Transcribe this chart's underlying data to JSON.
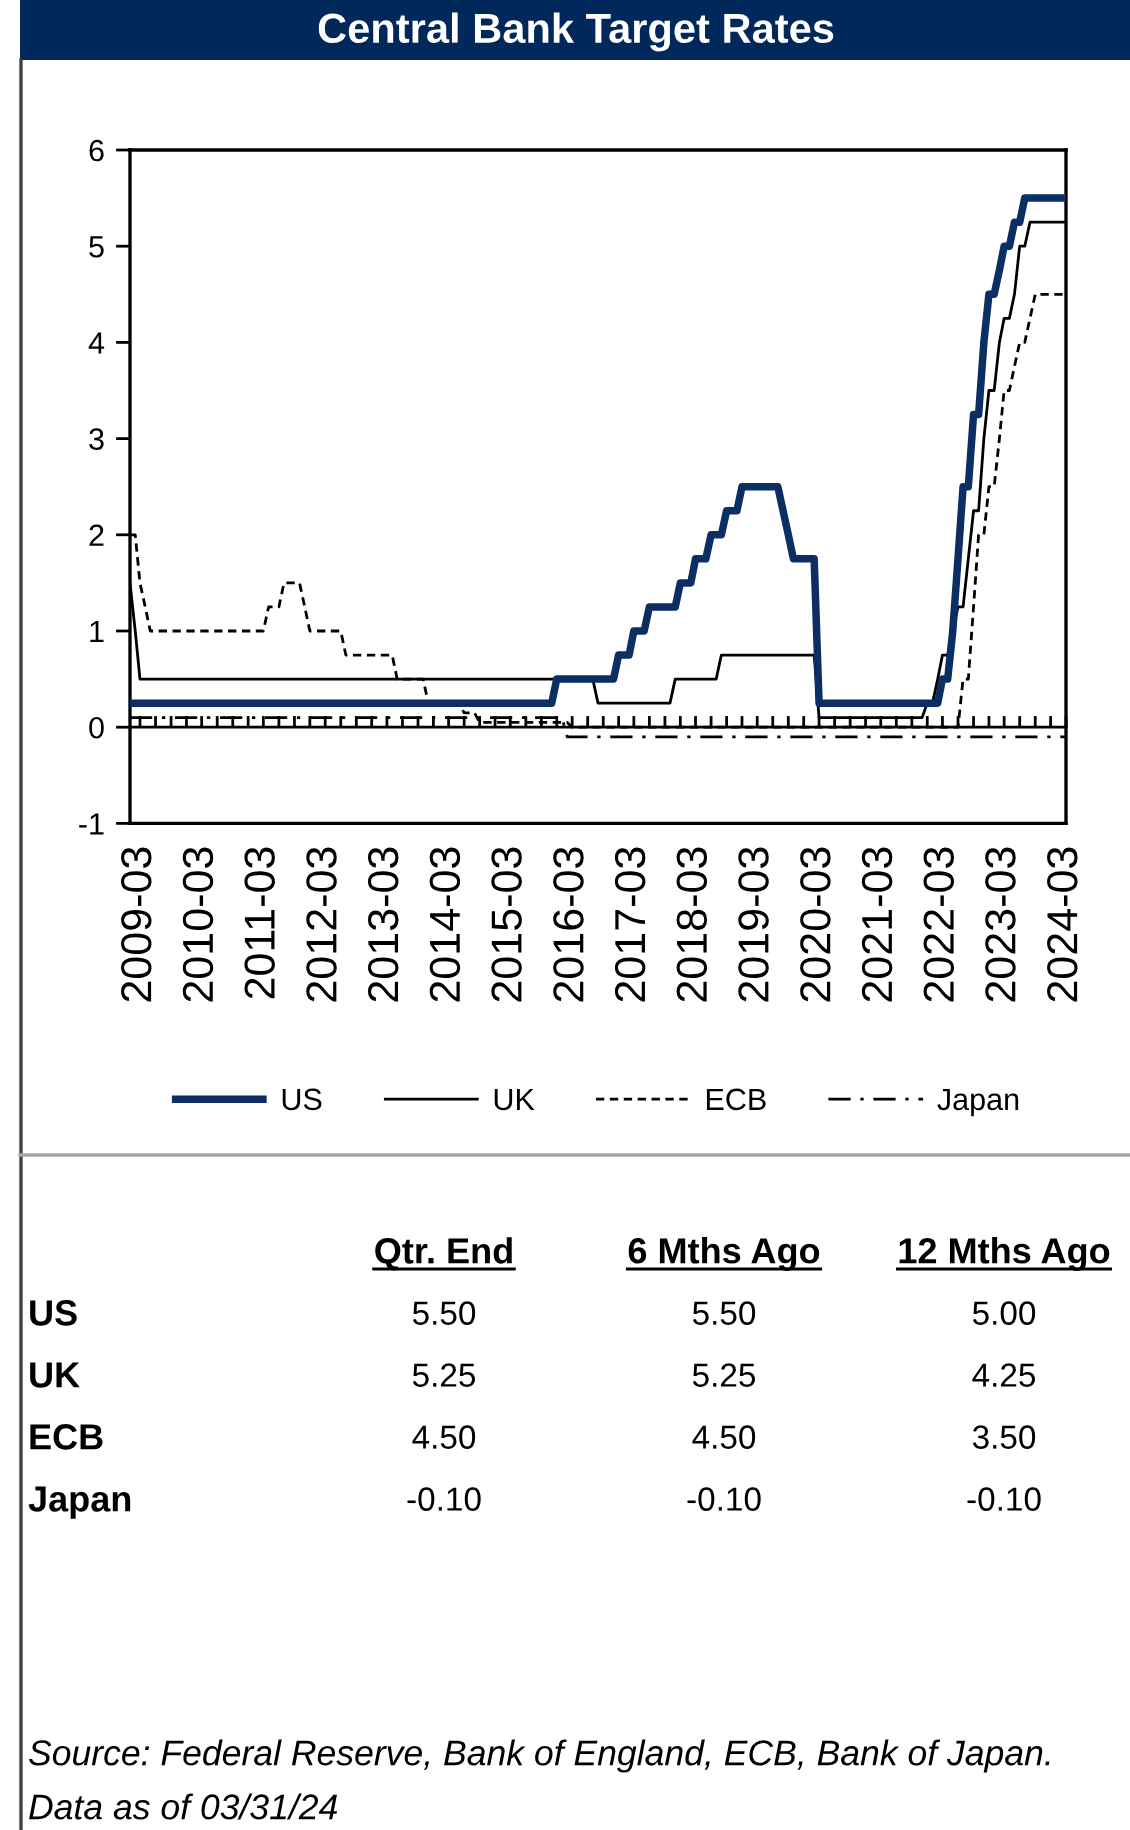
{
  "chart_data": [
    {
      "type": "line",
      "title": "Central Bank Target Rates",
      "xlim": [
        "2009-01",
        "2024-03"
      ],
      "ylim": [
        -1,
        6
      ],
      "yticks": [
        -1,
        0,
        1,
        2,
        3,
        4,
        5,
        6
      ],
      "xticks": [
        "2009-03",
        {
          "value": "2009-06",
          "label": null
        },
        {
          "value": "2009-09",
          "label": null
        },
        {
          "value": "2009-12",
          "label": null
        },
        "2010-03",
        {
          "value": "2010-06",
          "label": null
        },
        {
          "value": "2010-09",
          "label": null
        },
        {
          "value": "2010-12",
          "label": null
        },
        "2011-03",
        {
          "value": "2011-06",
          "label": null
        },
        {
          "value": "2011-09",
          "label": null
        },
        {
          "value": "2011-12",
          "label": null
        },
        "2012-03",
        {
          "value": "2012-06",
          "label": null
        },
        {
          "value": "2012-09",
          "label": null
        },
        {
          "value": "2012-12",
          "label": null
        },
        "2013-03",
        {
          "value": "2013-06",
          "label": null
        },
        {
          "value": "2013-09",
          "label": null
        },
        {
          "value": "2013-12",
          "label": null
        },
        "2014-03",
        {
          "value": "2014-06",
          "label": null
        },
        {
          "value": "2014-09",
          "label": null
        },
        {
          "value": "2014-12",
          "label": null
        },
        "2015-03",
        {
          "value": "2015-06",
          "label": null
        },
        {
          "value": "2015-09",
          "label": null
        },
        {
          "value": "2015-12",
          "label": null
        },
        "2016-03",
        {
          "value": "2016-06",
          "label": null
        },
        {
          "value": "2016-09",
          "label": null
        },
        {
          "value": "2016-12",
          "label": null
        },
        "2017-03",
        {
          "value": "2017-06",
          "label": null
        },
        {
          "value": "2017-09",
          "label": null
        },
        {
          "value": "2017-12",
          "label": null
        },
        "2018-03",
        {
          "value": "2018-06",
          "label": null
        },
        {
          "value": "2018-09",
          "label": null
        },
        {
          "value": "2018-12",
          "label": null
        },
        "2019-03",
        {
          "value": "2019-06",
          "label": null
        },
        {
          "value": "2019-09",
          "label": null
        },
        {
          "value": "2019-12",
          "label": null
        },
        "2020-03",
        {
          "value": "2020-06",
          "label": null
        },
        {
          "value": "2020-09",
          "label": null
        },
        {
          "value": "2020-12",
          "label": null
        },
        "2021-03",
        {
          "value": "2021-06",
          "label": null
        },
        {
          "value": "2021-09",
          "label": null
        },
        {
          "value": "2021-12",
          "label": null
        },
        "2022-03",
        {
          "value": "2022-06",
          "label": null
        },
        {
          "value": "2022-09",
          "label": null
        },
        {
          "value": "2022-12",
          "label": null
        },
        "2023-03",
        {
          "value": "2023-06",
          "label": null
        },
        {
          "value": "2023-09",
          "label": null
        },
        {
          "value": "2023-12",
          "label": null
        },
        "2024-03"
      ],
      "ref_lines": [
        {
          "axis": "y",
          "value": 0
        }
      ],
      "legend": "bottom",
      "series": [
        {
          "name": "US",
          "color": "#0b2f62",
          "line_style": "solid",
          "x": [
            "2009-01",
            "2015-11",
            "2015-12",
            "2016-11",
            "2016-12",
            "2017-02",
            "2017-03",
            "2017-05",
            "2017-06",
            "2017-11",
            "2017-12",
            "2018-02",
            "2018-03",
            "2018-05",
            "2018-06",
            "2018-08",
            "2018-09",
            "2018-11",
            "2018-12",
            "2019-07",
            "2019-08",
            "2019-09",
            "2019-10",
            "2020-02",
            "2020-03",
            "2022-02",
            "2022-03",
            "2022-04",
            "2022-05",
            "2022-06",
            "2022-07",
            "2022-08",
            "2022-09",
            "2022-10",
            "2022-11",
            "2022-12",
            "2023-01",
            "2023-02",
            "2023-03",
            "2023-04",
            "2023-05",
            "2023-06",
            "2023-07",
            "2024-03"
          ],
          "values": [
            0.25,
            0.25,
            0.5,
            0.5,
            0.75,
            0.75,
            1.0,
            1.0,
            1.25,
            1.25,
            1.5,
            1.5,
            1.75,
            1.75,
            2.0,
            2.0,
            2.25,
            2.25,
            2.5,
            2.5,
            2.25,
            2.0,
            1.75,
            1.75,
            0.25,
            0.25,
            0.5,
            0.5,
            1.0,
            1.75,
            2.5,
            2.5,
            3.25,
            3.25,
            4.0,
            4.5,
            4.5,
            4.75,
            5.0,
            5.0,
            5.25,
            5.25,
            5.5,
            5.5
          ]
        },
        {
          "name": "UK",
          "color": "#000000",
          "line_style": "solid",
          "x": [
            "2009-01",
            "2009-02",
            "2009-03",
            "2016-07",
            "2016-08",
            "2017-10",
            "2017-11",
            "2018-07",
            "2018-08",
            "2020-02",
            "2020-03",
            "2021-11",
            "2021-12",
            "2022-01",
            "2022-02",
            "2022-03",
            "2022-04",
            "2022-05",
            "2022-06",
            "2022-07",
            "2022-08",
            "2022-09",
            "2022-10",
            "2022-11",
            "2022-12",
            "2023-01",
            "2023-02",
            "2023-03",
            "2023-04",
            "2023-05",
            "2023-06",
            "2023-07",
            "2023-08",
            "2024-03"
          ],
          "values": [
            1.5,
            1.0,
            0.5,
            0.5,
            0.25,
            0.25,
            0.5,
            0.5,
            0.75,
            0.75,
            0.1,
            0.1,
            0.25,
            0.25,
            0.5,
            0.75,
            0.75,
            1.0,
            1.25,
            1.25,
            1.75,
            2.25,
            2.25,
            3.0,
            3.5,
            3.5,
            4.0,
            4.25,
            4.25,
            4.5,
            5.0,
            5.0,
            5.25,
            5.25
          ]
        },
        {
          "name": "ECB",
          "color": "#000000",
          "line_style": "dashed",
          "x": [
            "2009-01",
            "2009-02",
            "2009-03",
            "2009-04",
            "2009-05",
            "2011-03",
            "2011-04",
            "2011-06",
            "2011-07",
            "2011-10",
            "2011-11",
            "2011-12",
            "2012-06",
            "2012-07",
            "2013-04",
            "2013-05",
            "2013-10",
            "2013-11",
            "2014-05",
            "2014-06",
            "2014-08",
            "2014-09",
            "2016-02",
            "2016-03",
            "2022-06",
            "2022-07",
            "2022-08",
            "2022-09",
            "2022-10",
            "2022-11",
            "2022-12",
            "2023-01",
            "2023-02",
            "2023-03",
            "2023-04",
            "2023-05",
            "2023-06",
            "2023-07",
            "2023-08",
            "2023-09",
            "2024-03"
          ],
          "values": [
            2.0,
            2.0,
            1.5,
            1.25,
            1.0,
            1.0,
            1.25,
            1.25,
            1.5,
            1.5,
            1.25,
            1.0,
            1.0,
            0.75,
            0.75,
            0.5,
            0.5,
            0.25,
            0.25,
            0.15,
            0.15,
            0.05,
            0.05,
            0.0,
            0.0,
            0.5,
            0.5,
            1.25,
            2.0,
            2.0,
            2.5,
            2.5,
            3.0,
            3.5,
            3.5,
            3.75,
            4.0,
            4.0,
            4.25,
            4.5,
            4.5
          ]
        },
        {
          "name": "Japan",
          "color": "#000000",
          "line_style": "dashdot",
          "x": [
            "2009-01",
            "2016-01",
            "2016-02",
            "2024-03"
          ],
          "values": [
            0.1,
            0.1,
            -0.1,
            -0.1
          ]
        }
      ]
    },
    {
      "type": "other",
      "categories": [
        "Qtr. End",
        "6 Mths Ago",
        "12 Mths Ago"
      ],
      "y_categories": [
        "US",
        "UK",
        "ECB",
        "Japan"
      ],
      "cell_labels": [
        [
          "5.50",
          "5.50",
          "5.00"
        ],
        [
          "5.25",
          "5.25",
          "4.25"
        ],
        [
          "4.50",
          "4.50",
          "3.50"
        ],
        [
          "-0.10",
          "-0.10",
          "-0.10"
        ]
      ],
      "annotations": [
        "Source: Federal Reserve, Bank of England, ECB, Bank of Japan.",
        "Data as of 03/31/24"
      ]
    }
  ]
}
